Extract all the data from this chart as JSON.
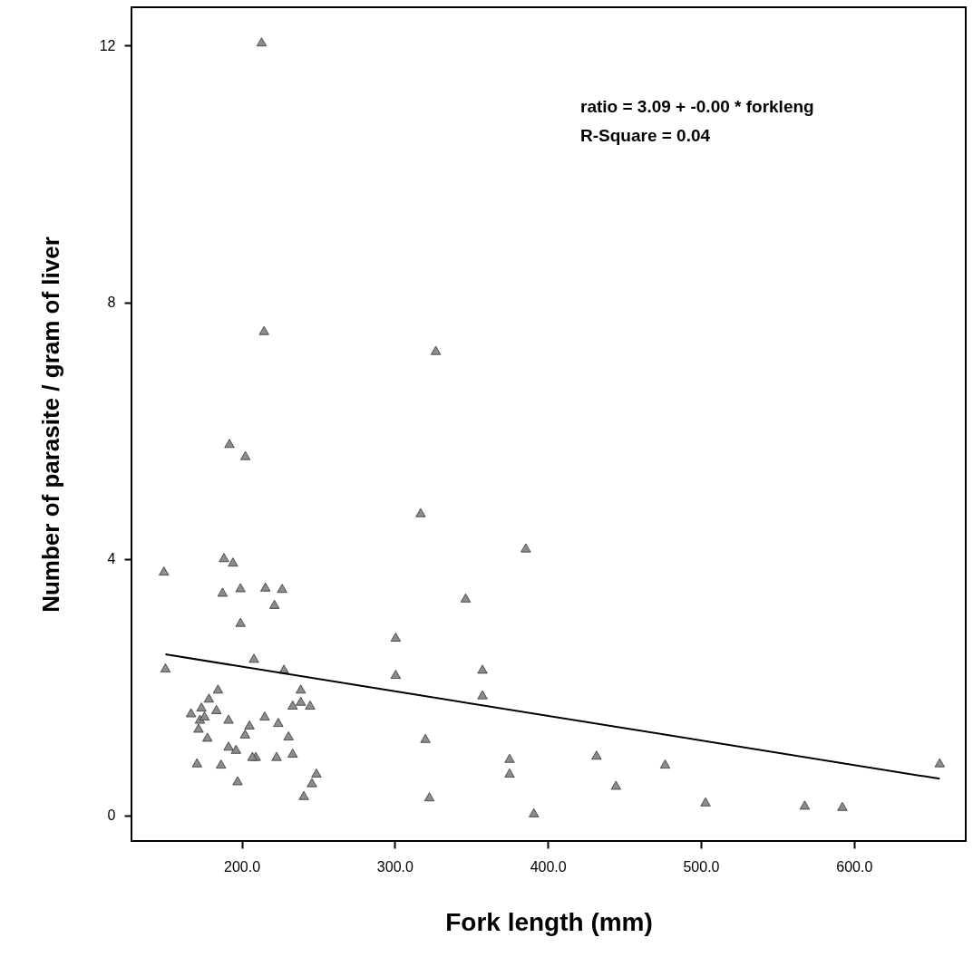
{
  "chart_data": {
    "type": "scatter",
    "xlabel": "Fork length (mm)",
    "ylabel": "Number of parasite / gram of liver",
    "annotations": [
      "ratio = 3.09 + -0.00 * forkleng",
      "R-Square = 0.04"
    ],
    "xlim": [
      128,
      673
    ],
    "ylim": [
      -0.4,
      12.6
    ],
    "xticks": [
      {
        "value": 200,
        "label": "200.0"
      },
      {
        "value": 300,
        "label": "300.0"
      },
      {
        "value": 400,
        "label": "400.0"
      },
      {
        "value": 500,
        "label": "500.0"
      },
      {
        "value": 600,
        "label": "600.0"
      }
    ],
    "yticks": [
      0,
      4,
      8,
      12
    ],
    "grid": false,
    "marker": "triangle",
    "series": [
      {
        "type": "scatter",
        "color": "#8c8c8c",
        "x": [
          213,
          214.6,
          326.8,
          192,
          202.4,
          316.9,
          385.6,
          215.5,
          226.4,
          221.4,
          346.3,
          300.6,
          208,
          227.6,
          300.6,
          357.3,
          357.3,
          238.6,
          238.6,
          233.3,
          244.7,
          215,
          223.9,
          230.6,
          233.3,
          222.8,
          209.2,
          320,
          375,
          375,
          431.8,
          444.5,
          322.6,
          390.9,
          248.8,
          245.9,
          240.6,
          476.6,
          503,
          567.8,
          592.4,
          656,
          149.2,
          150.2,
          188.4,
          194.3,
          187.5,
          199.2,
          199.2,
          184.5,
          178.6,
          173.7,
          166.9,
          172.7,
          175.7,
          183.5,
          191.4,
          171.8,
          177.6,
          205.1,
          202.2,
          191.4,
          196.3,
          207,
          170.8,
          186.5,
          197.3
        ],
        "values": [
          12.06,
          7.56,
          7.25,
          5.8,
          5.61,
          4.72,
          4.17,
          3.56,
          3.54,
          3.29,
          3.39,
          2.78,
          2.45,
          2.28,
          2.2,
          2.28,
          1.88,
          1.97,
          1.78,
          1.72,
          1.72,
          1.55,
          1.45,
          1.24,
          0.97,
          0.92,
          0.92,
          1.2,
          0.89,
          0.66,
          0.94,
          0.47,
          0.29,
          0.04,
          0.66,
          0.51,
          0.31,
          0.8,
          0.21,
          0.16,
          0.14,
          0.82,
          3.81,
          2.3,
          4.02,
          3.95,
          3.48,
          3.55,
          3.01,
          1.97,
          1.83,
          1.69,
          1.6,
          1.5,
          1.55,
          1.65,
          1.5,
          1.36,
          1.22,
          1.41,
          1.27,
          1.08,
          1.03,
          0.92,
          0.82,
          0.8,
          0.54
        ]
      },
      {
        "type": "line",
        "color": "#000000",
        "x": [
          150.2,
          656
        ],
        "values": [
          2.51,
          0.57
        ],
        "marker": "none"
      }
    ]
  }
}
